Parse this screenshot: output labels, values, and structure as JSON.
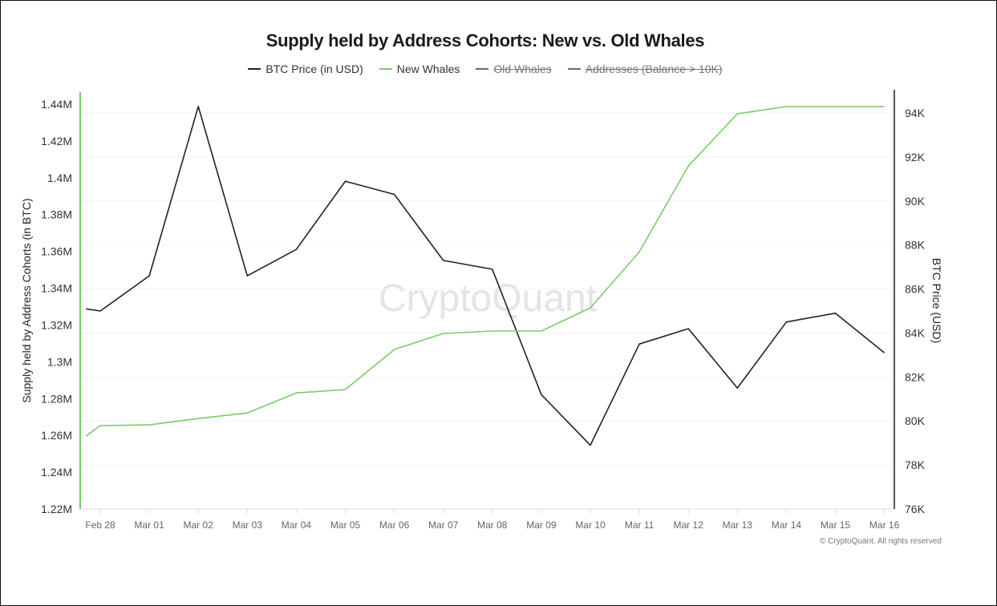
{
  "chart_data": {
    "type": "line",
    "title": "Supply held by Address Cohorts: New vs. Old Whales",
    "legend": [
      {
        "name": "BTC Price (in USD)",
        "color": "#222222",
        "enabled": true
      },
      {
        "name": "New Whales",
        "color": "#79cc6a",
        "enabled": true
      },
      {
        "name": "Old Whales",
        "color": "#6b6b7a",
        "enabled": false
      },
      {
        "name": "Addresses (Balance > 10K)",
        "color": "#6b6b7a",
        "enabled": false
      }
    ],
    "legend_position": "top",
    "x_ticks": [
      "Feb 28",
      "Mar 01",
      "Mar 02",
      "Mar 03",
      "Mar 04",
      "Mar 05",
      "Mar 06",
      "Mar 07",
      "Mar 08",
      "Mar 09",
      "Mar 10",
      "Mar 11",
      "Mar 12",
      "Mar 13",
      "Mar 14",
      "Mar 15",
      "Mar 16"
    ],
    "x": [
      "Feb 27 17:00",
      "Feb 28",
      "Mar 01",
      "Mar 02",
      "Mar 03",
      "Mar 04",
      "Mar 05",
      "Mar 06",
      "Mar 07",
      "Mar 08",
      "Mar 09",
      "Mar 10",
      "Mar 11",
      "Mar 12",
      "Mar 13",
      "Mar 14",
      "Mar 15",
      "Mar 16"
    ],
    "y_left": {
      "label": "Supply held by Address Cohorts (in BTC)",
      "ticks": [
        "1.22M",
        "1.24M",
        "1.26M",
        "1.28M",
        "1.3M",
        "1.32M",
        "1.34M",
        "1.36M",
        "1.38M",
        "1.4M",
        "1.42M",
        "1.44M"
      ],
      "range": [
        1220000,
        1440000
      ]
    },
    "y_right": {
      "label": "BTC Price (USD)",
      "ticks": [
        "76K",
        "78K",
        "80K",
        "82K",
        "84K",
        "86K",
        "88K",
        "90K",
        "92K",
        "94K"
      ],
      "range": [
        76000,
        94000
      ]
    },
    "grid": true,
    "series": [
      {
        "name": "BTC Price (in USD)",
        "axis": "right",
        "color": "#222222",
        "values": [
          85100,
          85000,
          86600,
          94300,
          86600,
          87800,
          90900,
          90300,
          87300,
          86900,
          81200,
          78900,
          83500,
          84200,
          81500,
          84500,
          84900,
          83100
        ]
      },
      {
        "name": "New Whales",
        "axis": "left",
        "color": "#79cc6a",
        "values": [
          1259600,
          1265300,
          1265700,
          1269200,
          1272200,
          1283100,
          1284900,
          1306700,
          1315400,
          1316700,
          1316700,
          1329300,
          1359800,
          1406400,
          1434800,
          1438700,
          1438700,
          1438700
        ]
      }
    ],
    "watermark": "CryptoQuant",
    "copyright": "© CryptoQuant. All rights reserved"
  }
}
